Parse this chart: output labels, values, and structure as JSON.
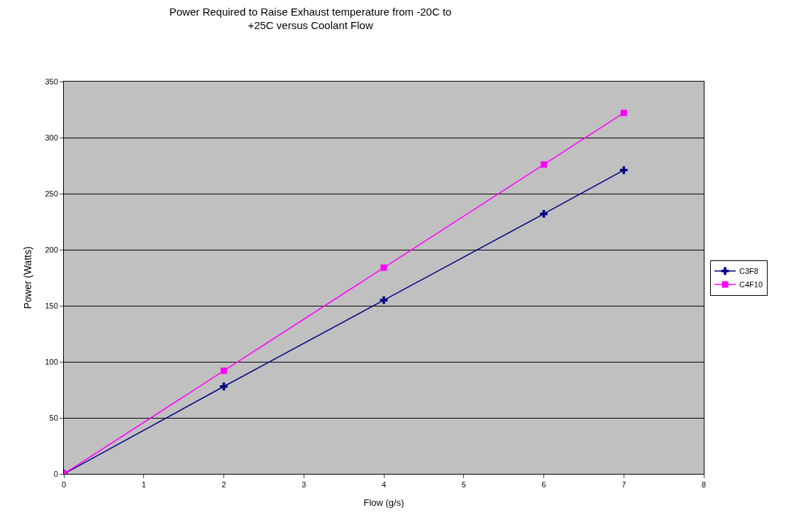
{
  "chart_data": {
    "type": "line",
    "title": "Power Required to Raise Exhaust temperature from -20C to\n+25C versus Coolant Flow",
    "xlabel": "Flow (g/s)",
    "ylabel": "Power (Watts)",
    "x": [
      0,
      2,
      4,
      6,
      7
    ],
    "series": [
      {
        "name": "C3F8",
        "color": "#000080",
        "values": [
          0,
          78,
          155,
          232,
          271
        ],
        "marker": "cross"
      },
      {
        "name": "C4F10",
        "color": "#ff00ff",
        "values": [
          0,
          92,
          184,
          276,
          322
        ],
        "marker": "square"
      }
    ],
    "xlim": [
      0,
      8
    ],
    "xticks": [
      0,
      1,
      2,
      3,
      4,
      5,
      6,
      7,
      8
    ],
    "ylim": [
      0,
      350
    ],
    "yticks": [
      0,
      50,
      100,
      150,
      200,
      250,
      300,
      350
    ],
    "grid": "y",
    "legend": "right",
    "line_style": "solid"
  }
}
